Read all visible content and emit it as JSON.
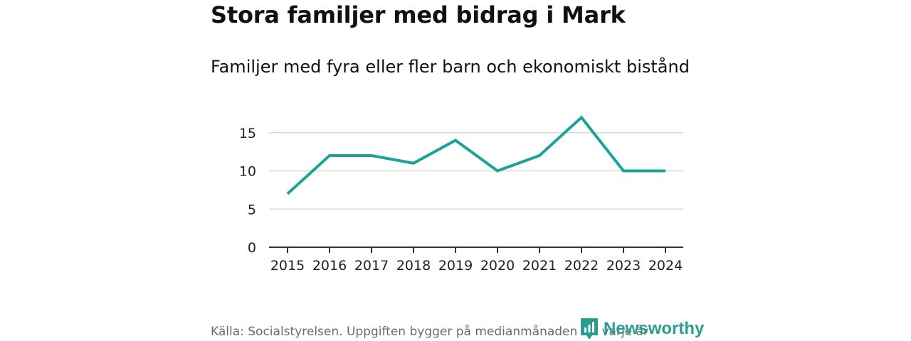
{
  "title": "Stora familjer med bidrag i Mark",
  "subtitle": "Familjer med fyra eller fler barn och ekonomiskt bistånd",
  "source": "Källa: Socialstyrelsen. Uppgiften bygger på medianmånaden för varje år",
  "brand": {
    "name": "Newsworthy",
    "color": "#2a9d8f",
    "icon": "newsworthy-logo-icon"
  },
  "colors": {
    "line": "#1ba39a",
    "grid": "#d9d9d9",
    "axis": "#333333"
  },
  "chart_data": {
    "type": "line",
    "title": "Stora familjer med bidrag i Mark",
    "subtitle": "Familjer med fyra eller fler barn och ekonomiskt bistånd",
    "xlabel": "",
    "ylabel": "",
    "grid": true,
    "ylim": [
      0,
      17
    ],
    "yticks": [
      0,
      5,
      10,
      15
    ],
    "categories": [
      "2015",
      "2016",
      "2017",
      "2018",
      "2019",
      "2020",
      "2021",
      "2022",
      "2023",
      "2024"
    ],
    "series": [
      {
        "name": "Familjer med fyra eller fler barn och ekonomiskt bistånd",
        "values": [
          7,
          12,
          12,
          11,
          14,
          10,
          12,
          17,
          10,
          10
        ]
      }
    ]
  }
}
